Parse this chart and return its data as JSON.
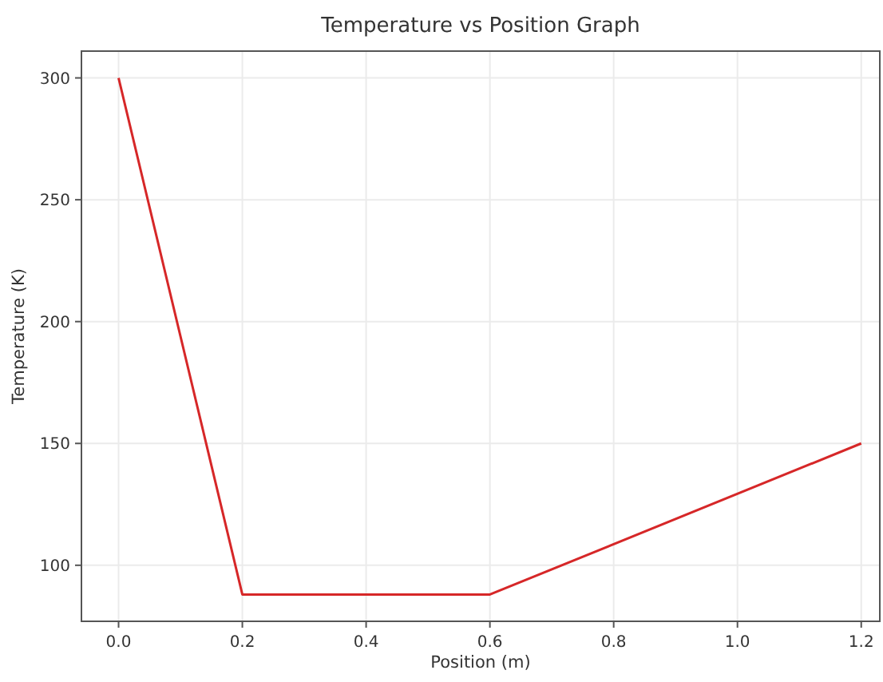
{
  "chart_data": {
    "type": "line",
    "title": "Temperature vs Position Graph",
    "xlabel": "Position (m)",
    "ylabel": "Temperature (K)",
    "x": [
      0,
      0.2,
      0.6,
      1.2
    ],
    "series": [
      {
        "color": "#d62728",
        "values": [
          300,
          88,
          88,
          150
        ]
      }
    ],
    "xlim": [
      -0.06,
      1.23
    ],
    "xticks": [
      {
        "value": 0,
        "label": "0.0"
      },
      {
        "value": 0.2,
        "label": "0.2"
      },
      {
        "value": 0.4,
        "label": "0.4"
      },
      {
        "value": 0.6,
        "label": "0.6"
      },
      {
        "value": 0.8,
        "label": "0.8"
      },
      {
        "value": 1,
        "label": "1.0"
      },
      {
        "value": 1.2,
        "label": "1.2"
      }
    ],
    "ylim": [
      77,
      311
    ],
    "yticks": [
      100,
      150,
      200,
      250,
      300
    ],
    "grid": true,
    "marker": "none",
    "line_style": "solid"
  }
}
